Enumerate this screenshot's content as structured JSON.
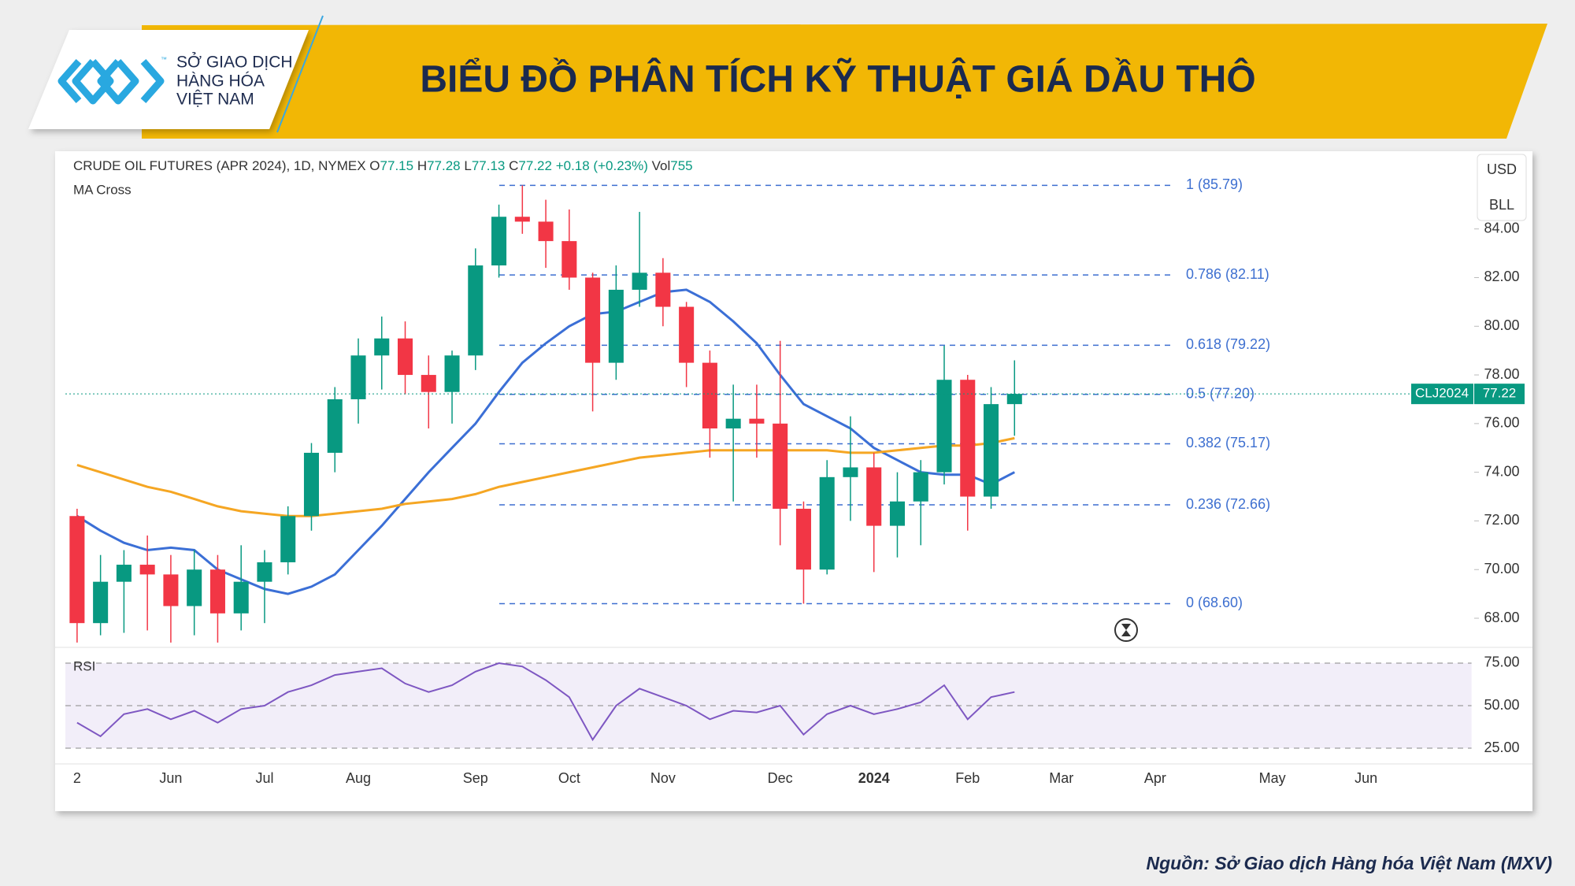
{
  "header": {
    "title": "BIỂU ĐỒ PHÂN TÍCH KỸ THUẬT GIÁ DẦU THÔ",
    "logo_lines": [
      "SỞ GIAO DỊCH",
      "HÀNG HÓA",
      "VIỆT NAM"
    ],
    "logo_mark": "™"
  },
  "source": "Nguồn: Sở Giao dịch Hàng hóa Việt Nam (MXV)",
  "chart_data": {
    "type": "candlestick",
    "header": {
      "symbol": "CRUDE OIL FUTURES (APR 2024), 1D, NYMEX",
      "o_label": "O",
      "open": 77.15,
      "h_label": "H",
      "high": 77.28,
      "l_label": "L",
      "low": 77.13,
      "c_label": "C",
      "close": 77.22,
      "change": "+0.18 (+0.23%)",
      "vol_label": "Vol",
      "volume": 755
    },
    "indicator_title": "MA Cross",
    "currency": "USD",
    "unit": "BLL",
    "categories": [
      "2",
      null,
      null,
      null,
      "Jun",
      null,
      null,
      null,
      "Jul",
      null,
      null,
      null,
      "Aug",
      null,
      null,
      null,
      null,
      "Sep",
      null,
      null,
      null,
      "Oct",
      null,
      null,
      null,
      "Nov",
      null,
      null,
      null,
      null,
      "Dec",
      null,
      null,
      null,
      "2024",
      null,
      null,
      null,
      "Feb",
      null,
      null,
      null,
      "Mar",
      null,
      null,
      null,
      "Apr",
      null,
      null,
      null,
      null,
      "May",
      null,
      null,
      null,
      "Jun",
      null,
      null,
      null,
      null
    ],
    "open": [
      72.2,
      67.8,
      69.5,
      70.2,
      69.8,
      68.5,
      70.0,
      68.2,
      69.5,
      70.3,
      72.2,
      74.8,
      77.0,
      78.8,
      79.5,
      78.0,
      77.3,
      78.8,
      82.5,
      84.5,
      84.3,
      83.5,
      82.0,
      78.5,
      81.5,
      82.2,
      80.8,
      78.5,
      75.8,
      76.2,
      76.0,
      72.5,
      70.0,
      73.8,
      74.2,
      71.8,
      72.8,
      74.0,
      77.8,
      73.0,
      76.8,
      null,
      null,
      null,
      null,
      null,
      null,
      null,
      null,
      null,
      null,
      null,
      null,
      null,
      null,
      null,
      null,
      null,
      null,
      null
    ],
    "high": [
      72.5,
      70.6,
      70.8,
      71.4,
      70.6,
      70.8,
      70.6,
      71.0,
      70.8,
      72.6,
      75.2,
      77.5,
      79.5,
      80.4,
      80.2,
      78.8,
      79.0,
      83.2,
      85.0,
      85.79,
      85.2,
      84.8,
      82.2,
      82.5,
      84.7,
      82.8,
      81.0,
      79.0,
      77.6,
      77.6,
      79.4,
      72.8,
      74.5,
      76.3,
      74.8,
      74.0,
      74.5,
      79.2,
      78.0,
      77.5,
      78.6,
      null,
      null,
      null,
      null,
      null,
      null,
      null,
      null,
      null,
      null,
      null,
      null,
      null,
      null,
      null,
      null,
      null,
      null,
      null
    ],
    "low": [
      67.0,
      67.3,
      67.4,
      67.5,
      67.0,
      67.3,
      67.0,
      67.5,
      67.8,
      69.8,
      71.6,
      74.0,
      76.0,
      77.4,
      77.2,
      75.8,
      76.0,
      78.2,
      82.0,
      83.8,
      82.4,
      81.5,
      76.5,
      77.8,
      80.8,
      80.0,
      77.5,
      74.6,
      72.8,
      74.6,
      71.0,
      68.6,
      69.8,
      72.0,
      69.9,
      70.5,
      71.0,
      73.5,
      71.6,
      72.5,
      75.5,
      null,
      null,
      null,
      null,
      null,
      null,
      null,
      null,
      null,
      null,
      null,
      null,
      null,
      null,
      null,
      null,
      null,
      null,
      null
    ],
    "close": [
      67.8,
      69.5,
      70.2,
      69.8,
      68.5,
      70.0,
      68.2,
      69.5,
      70.3,
      72.2,
      74.8,
      77.0,
      78.8,
      79.5,
      78.0,
      77.3,
      78.8,
      82.5,
      84.5,
      84.3,
      83.5,
      82.0,
      78.5,
      81.5,
      82.2,
      80.8,
      78.5,
      75.8,
      76.2,
      76.0,
      72.5,
      70.0,
      73.8,
      74.2,
      71.8,
      72.8,
      74.0,
      77.8,
      73.0,
      76.8,
      77.22,
      null,
      null,
      null,
      null,
      null,
      null,
      null,
      null,
      null,
      null,
      null,
      null,
      null,
      null,
      null,
      null,
      null,
      null,
      null
    ],
    "up_color": "#089981",
    "down_color": "#f23645",
    "ma_lines": [
      {
        "color": "#3b6fd6",
        "values": [
          72.2,
          71.6,
          71.1,
          70.8,
          70.9,
          70.8,
          70.0,
          69.6,
          69.2,
          69.0,
          69.3,
          69.8,
          70.8,
          71.8,
          72.9,
          74.0,
          75.0,
          76.0,
          77.3,
          78.5,
          79.3,
          80.0,
          80.5,
          80.6,
          81.0,
          81.4,
          81.5,
          81.0,
          80.2,
          79.3,
          78.0,
          76.8,
          76.3,
          75.8,
          75.0,
          74.5,
          74.0,
          73.9,
          73.9,
          73.5,
          74.0,
          null,
          null,
          null,
          null,
          null,
          null,
          null,
          null,
          null,
          null,
          null,
          null,
          null,
          null,
          null,
          null,
          null,
          null,
          null
        ]
      },
      {
        "color": "#f5a623",
        "values": [
          74.3,
          74.0,
          73.7,
          73.4,
          73.2,
          72.9,
          72.6,
          72.4,
          72.3,
          72.2,
          72.2,
          72.3,
          72.4,
          72.5,
          72.7,
          72.8,
          72.9,
          73.1,
          73.4,
          73.6,
          73.8,
          74.0,
          74.2,
          74.4,
          74.6,
          74.7,
          74.8,
          74.9,
          74.9,
          74.9,
          74.9,
          74.9,
          74.9,
          74.8,
          74.8,
          74.9,
          75.0,
          75.1,
          75.1,
          75.2,
          75.4,
          null,
          null,
          null,
          null,
          null,
          null,
          null,
          null,
          null,
          null,
          null,
          null,
          null,
          null,
          null,
          null,
          null,
          null,
          null
        ]
      }
    ],
    "ylim": [
      66.9,
      87.0
    ],
    "yticks": [
      {
        "value": 68,
        "label": "68.00"
      },
      {
        "value": 70,
        "label": "70.00"
      },
      {
        "value": 72,
        "label": "72.00"
      },
      {
        "value": 74,
        "label": "74.00"
      },
      {
        "value": 76,
        "label": "76.00"
      },
      {
        "value": 78,
        "label": "78.00"
      },
      {
        "value": 80,
        "label": "80.00"
      },
      {
        "value": 82,
        "label": "82.00"
      },
      {
        "value": 84,
        "label": "84.00"
      }
    ],
    "fib_levels": [
      {
        "value": 85.79,
        "label": "1 (85.79)"
      },
      {
        "value": 82.11,
        "label": "0.786 (82.11)"
      },
      {
        "value": 79.22,
        "label": "0.618 (79.22)"
      },
      {
        "value": 77.2,
        "label": "0.5 (77.20)"
      },
      {
        "value": 75.17,
        "label": "0.382 (75.17)"
      },
      {
        "value": 72.66,
        "label": "0.236 (72.66)"
      },
      {
        "value": 68.6,
        "label": "0 (68.60)"
      }
    ],
    "fib_color": "#3d6fd0",
    "last_price": {
      "name": "CLJ2024",
      "value": 77.22,
      "label": "77.22"
    },
    "rsi": {
      "title": "RSI",
      "color": "#7e57c2",
      "values": [
        40,
        32,
        45,
        48,
        42,
        47,
        40,
        48,
        50,
        58,
        62,
        68,
        70,
        72,
        63,
        58,
        62,
        70,
        75,
        73,
        65,
        55,
        30,
        50,
        60,
        55,
        50,
        42,
        47,
        46,
        50,
        33,
        45,
        50,
        45,
        48,
        52,
        62,
        42,
        55,
        58,
        null,
        null,
        null,
        null,
        null,
        null,
        null,
        null,
        null,
        null,
        null,
        null,
        null,
        null,
        null,
        null,
        null,
        null,
        null
      ],
      "ylim": [
        17.6,
        82.4
      ],
      "yticks": [
        {
          "value": 25,
          "label": "25.00"
        },
        {
          "value": 50,
          "label": "50.00"
        },
        {
          "value": 75,
          "label": "75.00"
        }
      ]
    }
  }
}
